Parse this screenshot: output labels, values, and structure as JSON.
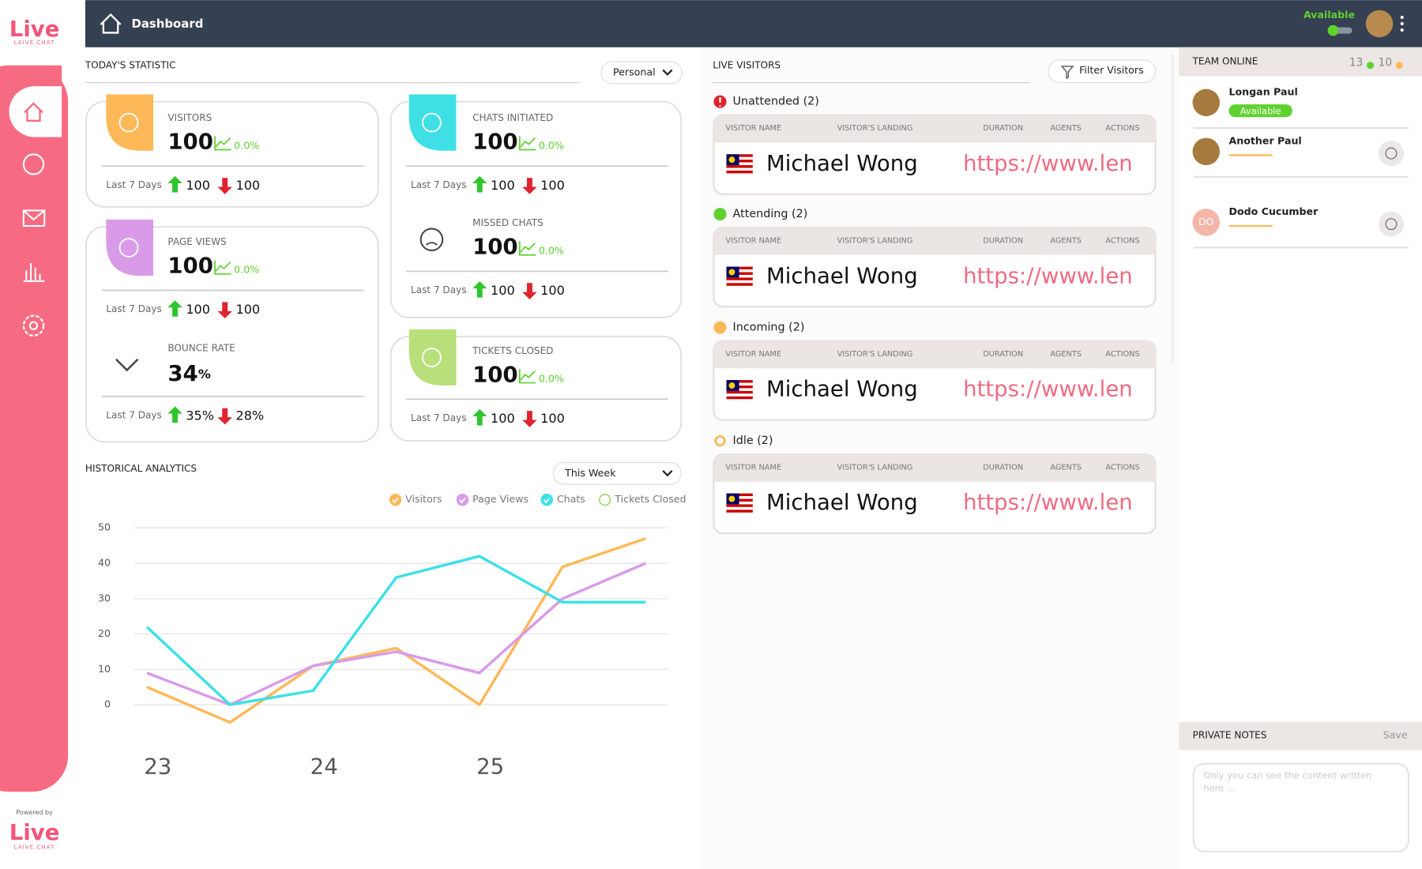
{
  "brand": {
    "name": "Live",
    "tagline": "LAIVE.CHAT",
    "powered_by": "Powered by"
  },
  "header": {
    "title": "Dashboard",
    "status": "Available"
  },
  "stats": {
    "title": "TODAY'S STATISTIC",
    "filter": "Personal",
    "cards": [
      {
        "label": "VISITORS",
        "value": 100,
        "change": "0.0%",
        "period": "Last 7 Days",
        "up": 100,
        "down": 100
      },
      {
        "label": "PAGE VIEWS",
        "value": 100,
        "change": "0.0%",
        "period": "Last 7 Days",
        "up": 100,
        "down": 100
      },
      {
        "label": "BOUNCE RATE",
        "value": 34,
        "unit": "%",
        "period": "Last 7 Days",
        "up": "35%",
        "down": "28%"
      },
      {
        "label": "CHATS INITIATED",
        "value": 100,
        "change": "0.0%",
        "period": "Last 7 Days",
        "up": 100,
        "down": 100
      },
      {
        "label": "MISSED CHATS",
        "value": 100,
        "change": "0.0%",
        "period": "Last 7 Days",
        "up": 100,
        "down": 100
      },
      {
        "label": "TICKETS CLOSED",
        "value": 100,
        "change": "0.0%",
        "period": "Last 7 Days",
        "up": 100,
        "down": 100
      }
    ]
  },
  "analytics": {
    "filter": "This Week"
  },
  "chart_data": {
    "type": "line",
    "title": "HISTORICAL ANALYTICS",
    "categories": [
      "23",
      null,
      "24",
      null,
      "25",
      null,
      null
    ],
    "series": [
      {
        "name": "Visitors",
        "color": "#fdb958",
        "values": [
          5,
          -5,
          11,
          16,
          0,
          39,
          47
        ]
      },
      {
        "name": "Page Views",
        "color": "#d99be8",
        "values": [
          9,
          0,
          11,
          15,
          9,
          30,
          40
        ]
      },
      {
        "name": "Chats",
        "color": "#3ee0e6",
        "values": [
          22,
          0,
          4,
          36,
          42,
          29,
          29
        ]
      },
      {
        "name": "Tickets Closed",
        "color": "#a8d672",
        "values": [
          null,
          null,
          null,
          null,
          null,
          null,
          null
        ]
      }
    ],
    "ylim": [
      0,
      50
    ],
    "yticks": [
      0,
      10,
      20,
      30,
      40,
      50
    ],
    "grid": true
  },
  "live_visitors": {
    "title": "LIVE VISITORS",
    "filter": "Filter Visitors",
    "columns": [
      "VISITOR NAME",
      "VISITOR'S LANDING",
      "DURATION",
      "AGENTS",
      "ACTIONS"
    ],
    "groups": [
      {
        "label": "Unattended (2)",
        "color": "#e0242f",
        "rows": [
          {
            "name": "Michael Wong",
            "landing": "https://www.len"
          }
        ]
      },
      {
        "label": "Attending (2)",
        "color": "#5fd12f",
        "rows": [
          {
            "name": "Michael Wong",
            "landing": "https://www.len"
          }
        ]
      },
      {
        "label": "Incoming (2)",
        "color": "#fdb958",
        "rows": [
          {
            "name": "Michael Wong",
            "landing": "https://www.len"
          }
        ]
      },
      {
        "label": "Idle (2)",
        "color": "#fdb958",
        "rows": [
          {
            "name": "Michael Wong",
            "landing": "https://www.len"
          }
        ]
      }
    ]
  },
  "team": {
    "title": "TEAM ONLINE",
    "online": 13,
    "away": 10,
    "members": [
      {
        "name": "Longan Paul",
        "status": "Available"
      },
      {
        "name": "Another Paul"
      },
      {
        "name": "Dodo Cucumber",
        "initials": "DO"
      }
    ]
  },
  "notes": {
    "title": "PRIVATE NOTES",
    "save": "Save",
    "placeholder": "Only you can see the content written here ..."
  }
}
